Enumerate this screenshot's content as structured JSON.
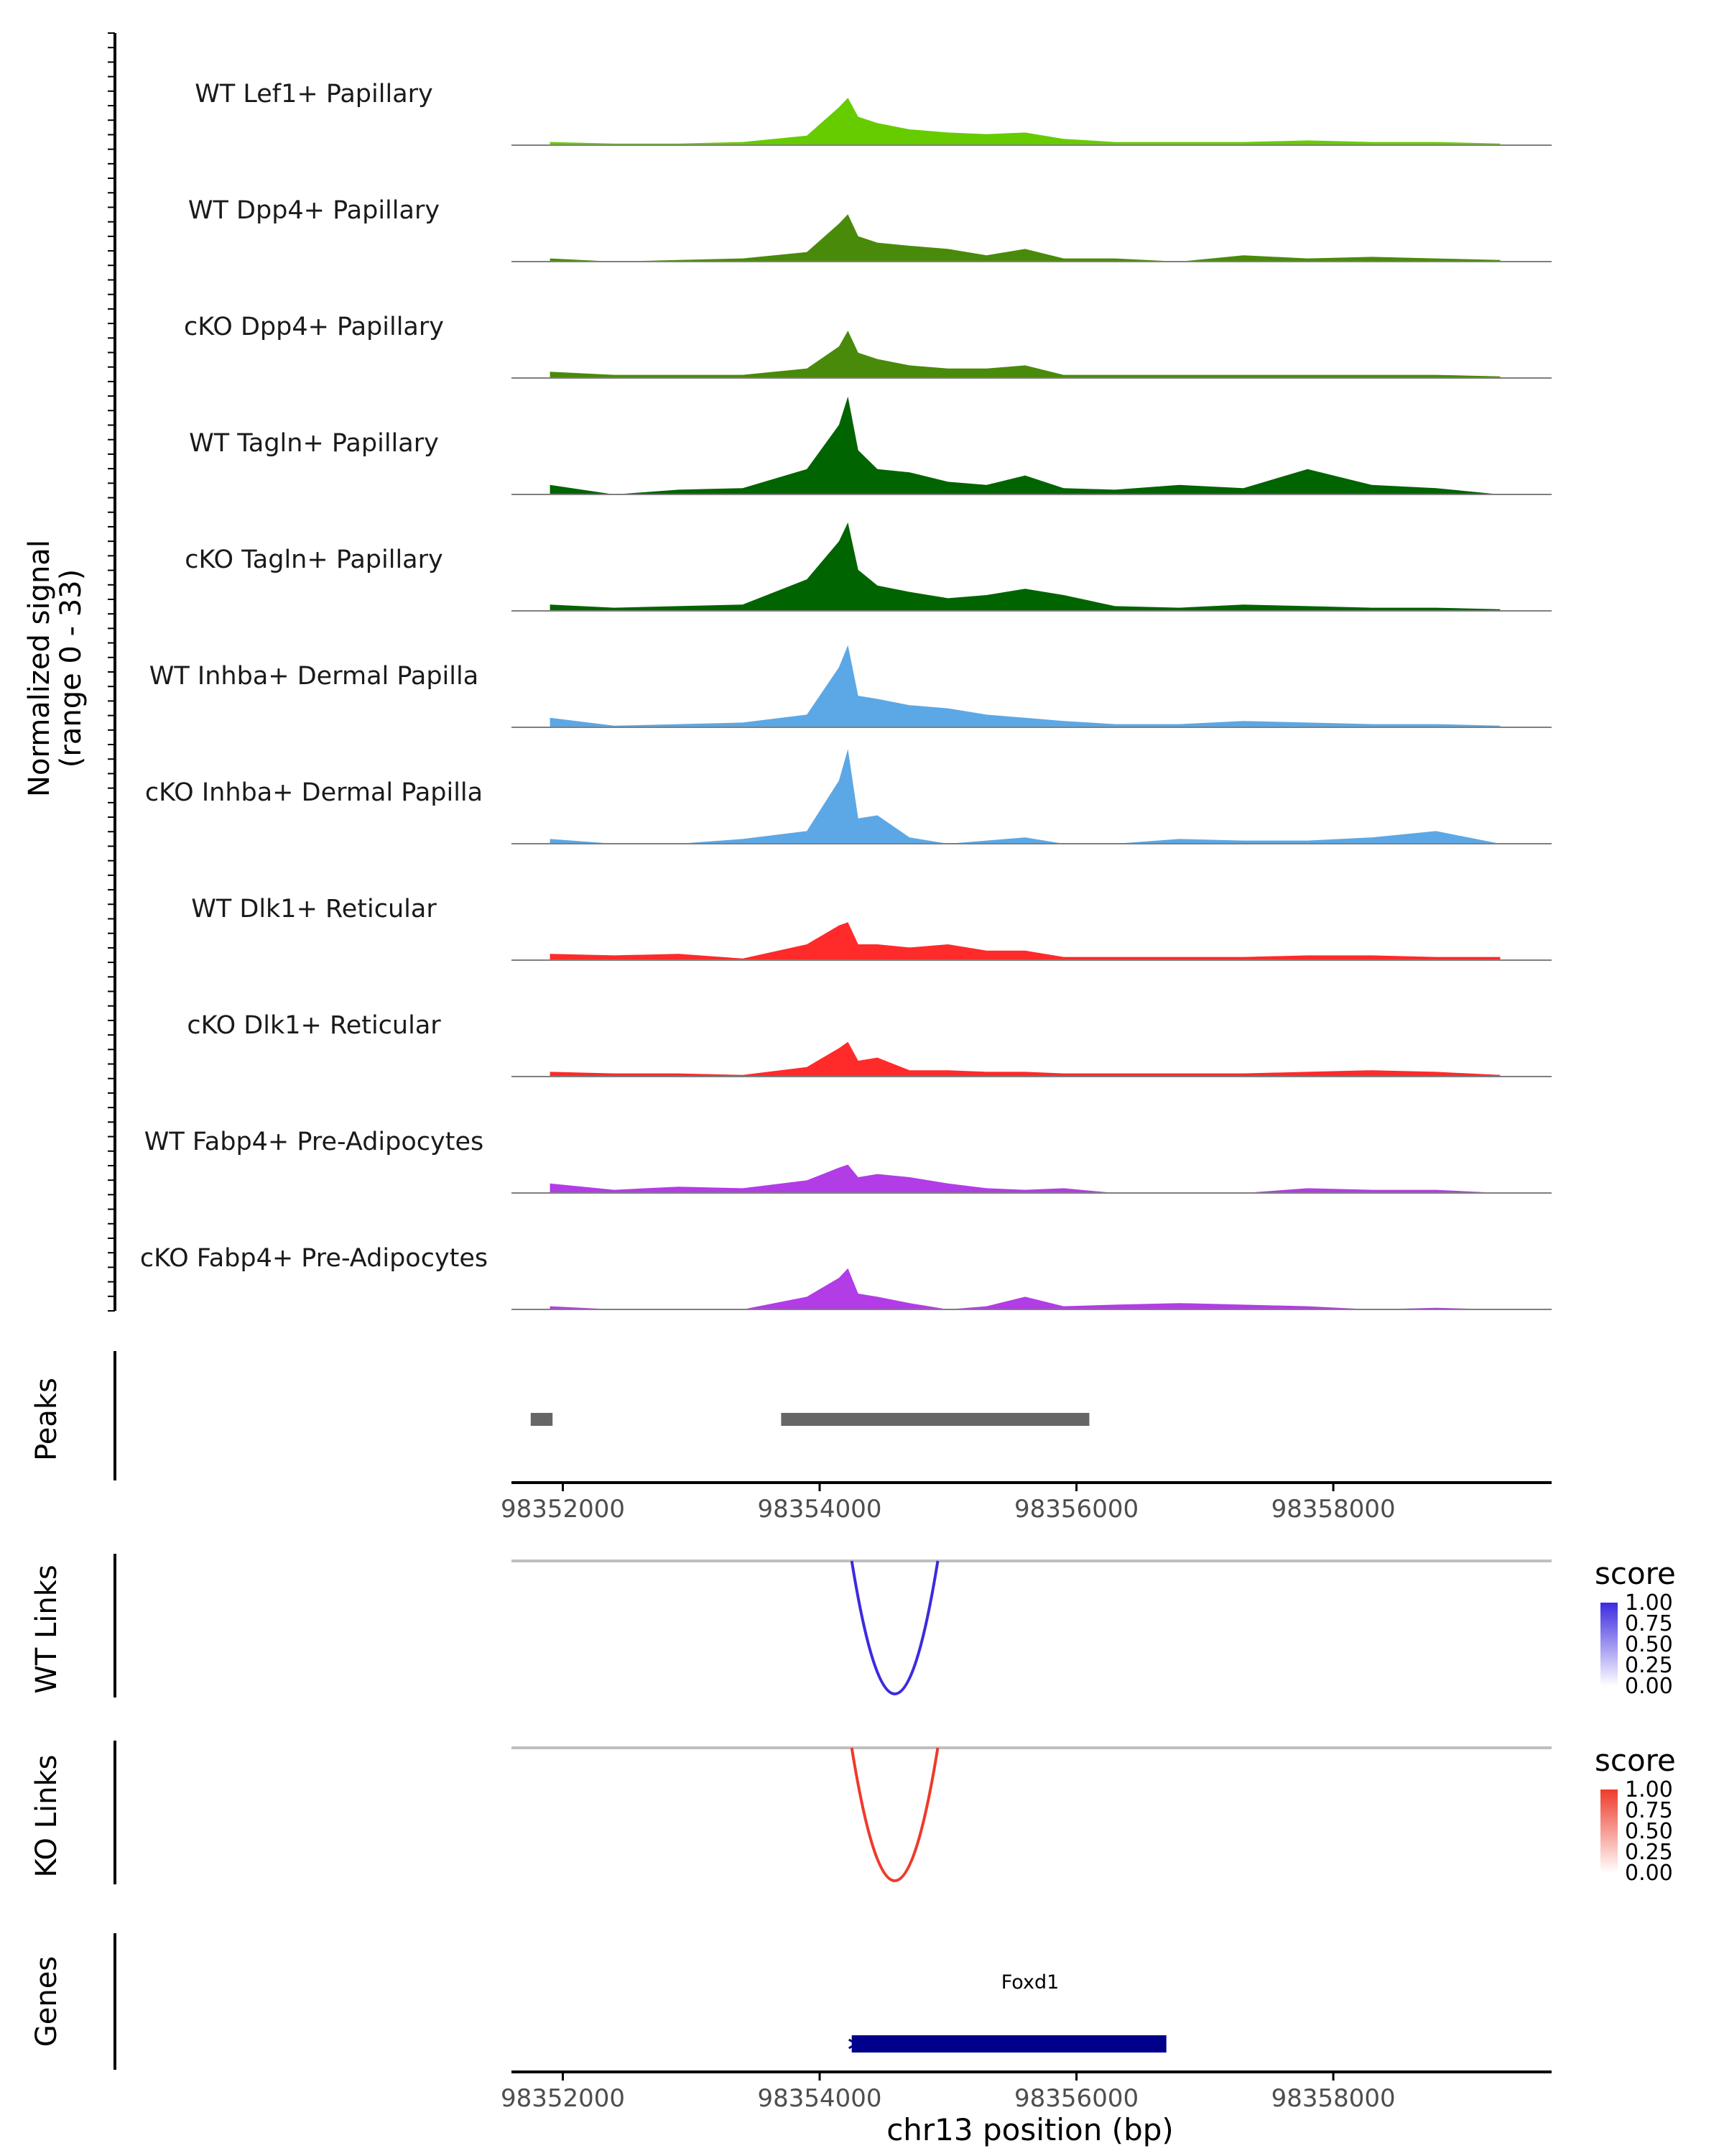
{
  "chart_data": {
    "type": "area",
    "title": "",
    "colors": {
      "lef1": "#66cc00",
      "dpp4": "#4a8a0a",
      "tagln": "#006400",
      "inhba": "#5ca8e6",
      "dlk1": "#ff2a2a",
      "fabp4": "#b23ce6",
      "peaks": "#666666",
      "axis": "#000000",
      "baseline": "#7f7f7f",
      "wt_link": "#3b2be0",
      "ko_link": "#ee3b2b",
      "gene": "#00008b"
    },
    "coverage": {
      "ylabel_line1": "Normalized signal",
      "ylabel_line2": "(range 0 - 33)",
      "ylim": [
        0,
        33
      ],
      "xlim": [
        98351600,
        98359700
      ],
      "x": [
        98351900,
        98352400,
        98352900,
        98353400,
        98353900,
        98354150,
        98354220,
        98354300,
        98354450,
        98354700,
        98355000,
        98355300,
        98355600,
        98355900,
        98356300,
        98356800,
        98357300,
        98357800,
        98358300,
        98358800,
        98359300
      ],
      "tracks": [
        {
          "name": "WT Lef1+ Papillary",
          "color_key": "lef1",
          "values": [
            1,
            0.5,
            0.5,
            1,
            3,
            12,
            15,
            9,
            7,
            5,
            4,
            3.5,
            4,
            2,
            1,
            1,
            1,
            1.5,
            1,
            1,
            0.5
          ]
        },
        {
          "name": "WT Dpp4+ Papillary",
          "color_key": "dpp4",
          "values": [
            1,
            0,
            0.5,
            1,
            3,
            12,
            15,
            8,
            6,
            5,
            4,
            2,
            4,
            1,
            1,
            0,
            2,
            1,
            1.5,
            1,
            0.5
          ]
        },
        {
          "name": "cKO Dpp4+ Papillary",
          "color_key": "dpp4",
          "values": [
            2,
            1,
            1,
            1,
            3,
            10,
            15,
            8,
            6,
            4,
            3,
            3,
            4,
            1,
            1,
            1,
            1,
            1,
            1,
            1,
            0.5
          ]
        },
        {
          "name": "WT Tagln+ Papillary",
          "color_key": "tagln",
          "values": [
            3,
            0,
            1.5,
            2,
            8,
            22,
            31,
            14,
            8,
            7,
            4,
            3,
            6,
            2,
            1.5,
            3,
            2,
            8,
            3,
            2,
            0
          ]
        },
        {
          "name": "cKO Tagln+ Papillary",
          "color_key": "tagln",
          "values": [
            2,
            1,
            1.5,
            2,
            10,
            22,
            28,
            13,
            8,
            6,
            4,
            5,
            7,
            5,
            1.5,
            1,
            2,
            1.5,
            1,
            1,
            0.5
          ]
        },
        {
          "name": "WT Inhba+ Dermal Papilla",
          "color_key": "inhba",
          "values": [
            3,
            0.5,
            1,
            1.5,
            4,
            19,
            26,
            10,
            9,
            7,
            6,
            4,
            3,
            2,
            1,
            1,
            2,
            1.5,
            1,
            1,
            0.5
          ]
        },
        {
          "name": "cKO Inhba+ Dermal Papilla",
          "color_key": "inhba",
          "values": [
            1.5,
            0,
            0,
            1.5,
            4,
            20,
            30,
            8,
            9,
            2,
            0,
            1,
            2,
            0,
            0,
            1.5,
            1,
            1,
            2,
            4,
            0
          ]
        },
        {
          "name": "WT Dlk1+ Reticular",
          "color_key": "dlk1",
          "values": [
            2,
            1.5,
            2,
            0.5,
            5,
            11,
            12,
            5,
            5,
            4,
            5,
            3,
            3,
            1,
            1,
            1,
            1,
            1.5,
            1.5,
            1,
            1
          ]
        },
        {
          "name": "cKO Dlk1+ Reticular",
          "color_key": "dlk1",
          "values": [
            1.5,
            1,
            1,
            0.5,
            3,
            9,
            11,
            5,
            6,
            2,
            2,
            1.5,
            1.5,
            1,
            1,
            1,
            1,
            1.5,
            2,
            1.5,
            0.5
          ]
        },
        {
          "name": "WT Fabp4+ Pre-Adipocytes",
          "color_key": "fabp4",
          "values": [
            3,
            1,
            2,
            1.5,
            4,
            8,
            9,
            5,
            6,
            5,
            3,
            1.5,
            1,
            1.5,
            0,
            0,
            0,
            1.5,
            1,
            1,
            0
          ]
        },
        {
          "name": "cKO Fabp4+ Pre-Adipocytes",
          "color_key": "fabp4",
          "values": [
            1,
            0,
            0,
            0,
            4,
            10,
            13,
            5,
            4,
            2,
            0,
            1,
            4,
            1,
            1.5,
            2,
            1.5,
            1,
            0,
            0.5,
            0
          ]
        }
      ]
    },
    "peaks": {
      "label": "Peaks",
      "regions": [
        [
          98351750,
          98351920
        ],
        [
          98353700,
          98356100
        ]
      ]
    },
    "position_axis": {
      "ticks": [
        98352000,
        98354000,
        98356000,
        98358000
      ],
      "tick_labels": [
        "98352000",
        "98354000",
        "98356000",
        "98358000"
      ]
    },
    "links": [
      {
        "label": "WT Links",
        "color_key": "wt_link",
        "start": 98354250,
        "end": 98354920,
        "score": 1.0
      },
      {
        "label": "KO Links",
        "color_key": "ko_link",
        "start": 98354250,
        "end": 98354920,
        "score": 1.0
      }
    ],
    "legends": [
      {
        "title": "score",
        "color_key": "wt_link",
        "labels": [
          "1.00",
          "0.75",
          "0.50",
          "0.25",
          "0.00"
        ]
      },
      {
        "title": "score",
        "color_key": "ko_link",
        "labels": [
          "1.00",
          "0.75",
          "0.50",
          "0.25",
          "0.00"
        ]
      }
    ],
    "genes": {
      "label": "Genes",
      "items": [
        {
          "name": "Foxd1",
          "start": 98354250,
          "end": 98356700,
          "strand": "-"
        }
      ]
    },
    "xlabel": "chr13 position (bp)"
  }
}
